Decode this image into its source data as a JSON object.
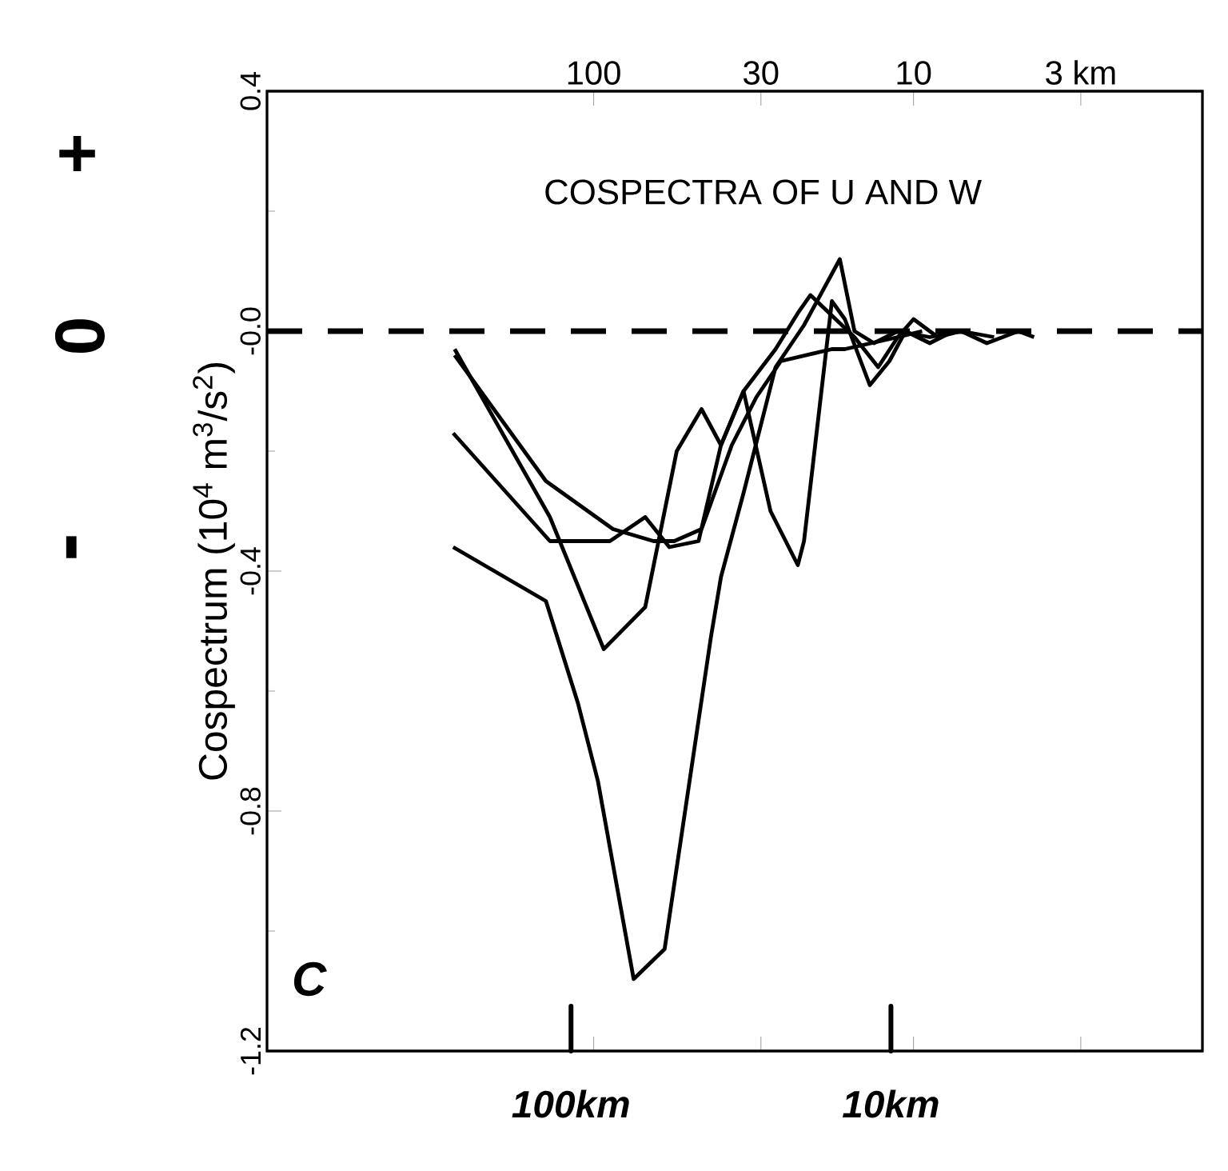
{
  "chart_data": {
    "type": "line",
    "title": "COSPECTRA OF U AND W",
    "ylabel": "Cospectrum (10$^{4}$ m$^{3}$/s$^{2}$)",
    "log": "x",
    "xlim": [
      1050,
      1.25
    ],
    "xticks": [
      100,
      30,
      10,
      {
        "value": 3,
        "label": "3 km"
      }
    ],
    "ylim": [
      -1.2,
      0.4
    ],
    "yticks": [
      -1.2,
      -0.8,
      -0.4,
      {
        "value": 0,
        "label": "-0.0"
      },
      0.4
    ],
    "ref_lines": [
      {
        "axis": "y",
        "value": 0,
        "color": "#000000",
        "line_style": "dashed"
      }
    ],
    "annotations": [
      "+",
      "0",
      "-",
      "C",
      "100km",
      "10km"
    ],
    "series": [
      {
        "color": "#000000",
        "x": [
          275,
          141,
          112,
          97,
          75,
          60,
          43,
          40,
          34,
          27,
          22,
          17,
          15.3,
          13.3,
          11.2,
          8.9,
          7.1,
          5.6
        ],
        "values": [
          -0.36,
          -0.45,
          -0.62,
          -0.75,
          -1.08,
          -1.03,
          -0.51,
          -0.41,
          -0.27,
          -0.06,
          0.01,
          0.12,
          0.0,
          -0.02,
          0.0,
          -0.01,
          0.0,
          -0.01
        ]
      },
      {
        "color": "#000000",
        "x": [
          272,
          137,
          93,
          69,
          55,
          46,
          40,
          34,
          28,
          23,
          22,
          18,
          16.4,
          13.7,
          11.9,
          10.6,
          8.9,
          7.5
        ],
        "values": [
          -0.03,
          -0.31,
          -0.53,
          -0.46,
          -0.2,
          -0.13,
          -0.19,
          -0.1,
          -0.3,
          -0.39,
          -0.35,
          0.05,
          0.02,
          -0.09,
          -0.05,
          0.0,
          -0.02,
          0.0
        ]
      },
      {
        "color": "#000000",
        "x": [
          275,
          137,
          89,
          69,
          58,
          47,
          40,
          34,
          27,
          23,
          21,
          15.3,
          12.9,
          11.2,
          9.4
        ],
        "values": [
          -0.17,
          -0.35,
          -0.35,
          -0.31,
          -0.36,
          -0.35,
          -0.19,
          -0.1,
          -0.03,
          0.03,
          0.06,
          -0.01,
          -0.06,
          -0.01,
          0.0
        ]
      },
      {
        "color": "#000000",
        "x": [
          272,
          141,
          87,
          65,
          56,
          46,
          37,
          31,
          26,
          18,
          16.4,
          11.2,
          10,
          8.4,
          7.1,
          5.9,
          4.7,
          4.2
        ],
        "values": [
          -0.04,
          -0.25,
          -0.33,
          -0.35,
          -0.35,
          -0.33,
          -0.19,
          -0.11,
          -0.05,
          -0.03,
          -0.03,
          -0.01,
          0.02,
          -0.01,
          0.0,
          -0.02,
          0.0,
          -0.01
        ]
      }
    ]
  }
}
